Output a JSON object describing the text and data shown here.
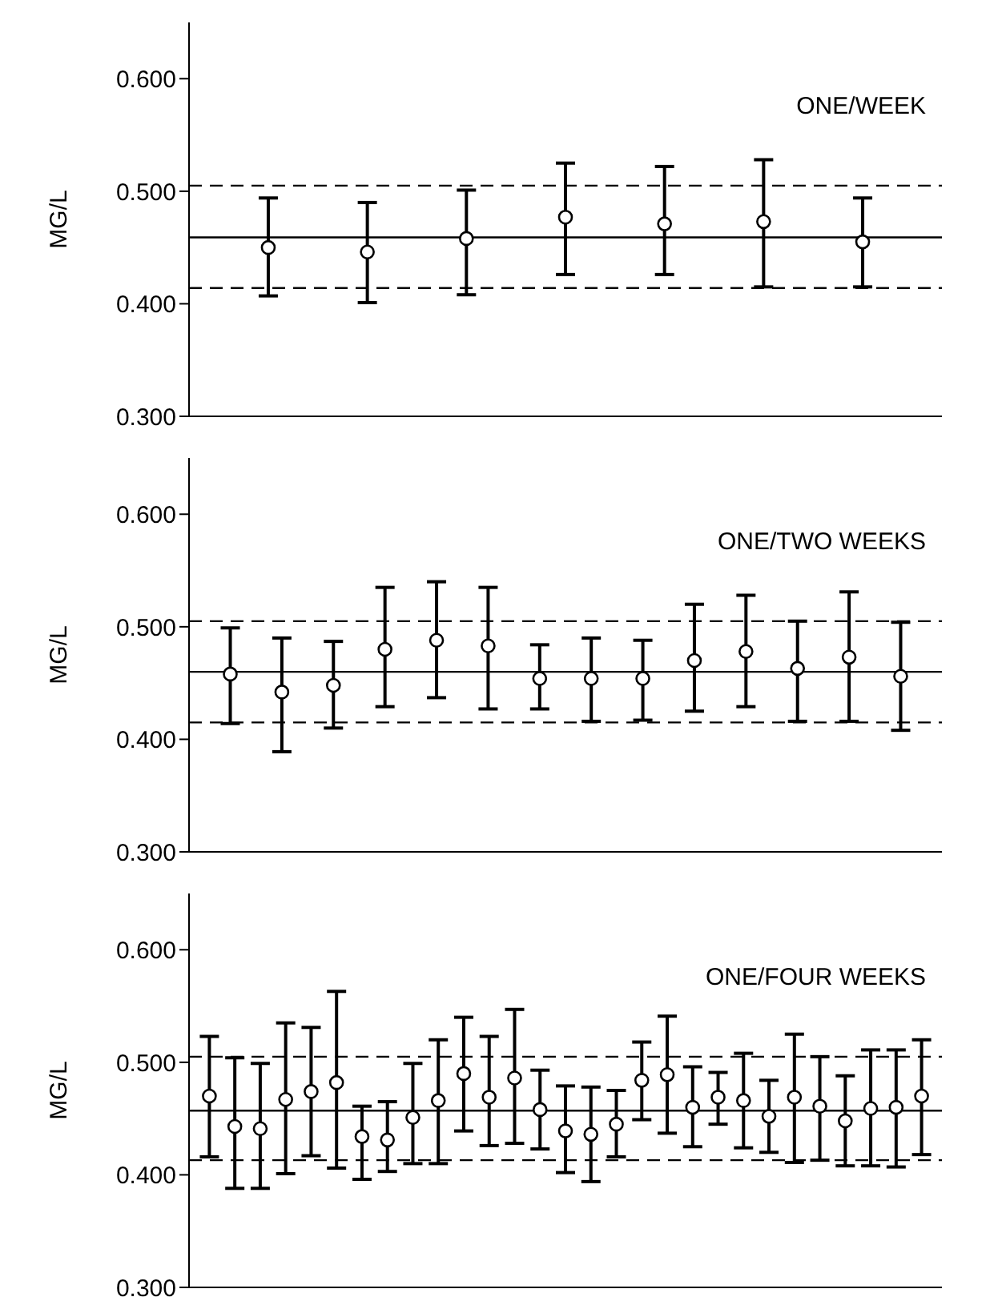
{
  "chart_data": [
    {
      "type": "scatter",
      "ylabel": "MG/L",
      "annotations": [
        "ONE/WEEK"
      ],
      "categories": [
        null,
        null,
        null,
        null,
        null,
        null,
        null
      ],
      "marker": "circle",
      "color": "#000000",
      "tick_labels": "y",
      "values": [
        0.45,
        0.446,
        0.458,
        0.477,
        0.471,
        0.473,
        0.455
      ],
      "errors": [
        [
          0.407,
          0.494
        ],
        [
          0.401,
          0.49
        ],
        [
          0.408,
          0.501
        ],
        [
          0.426,
          0.525
        ],
        [
          0.426,
          0.522
        ],
        [
          0.415,
          0.528
        ],
        [
          0.415,
          0.494
        ]
      ],
      "ylim": [
        0.3,
        0.65
      ],
      "yticks": [
        {
          "value": 0.3,
          "label": "0.300"
        },
        {
          "value": 0.4,
          "label": "0.400"
        },
        {
          "value": 0.5,
          "label": "0.500"
        },
        {
          "value": 0.6,
          "label": "0.600"
        }
      ],
      "ref_lines": [
        {
          "axis": "y",
          "value": 0.459,
          "line_style": "solid"
        },
        {
          "axis": "y",
          "value": 0.505,
          "line_style": "dashed"
        },
        {
          "axis": "y",
          "value": 0.414,
          "line_style": "dashed"
        }
      ]
    },
    {
      "type": "scatter",
      "ylabel": "MG/L",
      "annotations": [
        "ONE/TWO WEEKS"
      ],
      "categories": [
        null,
        null,
        null,
        null,
        null,
        null,
        null,
        null,
        null,
        null,
        null,
        null,
        null,
        null
      ],
      "marker": "circle",
      "color": "#000000",
      "tick_labels": "y",
      "values": [
        0.458,
        0.442,
        0.448,
        0.48,
        0.488,
        0.483,
        0.454,
        0.454,
        0.454,
        0.47,
        0.478,
        0.463,
        0.473,
        0.456
      ],
      "errors": [
        [
          0.414,
          0.499
        ],
        [
          0.389,
          0.49
        ],
        [
          0.41,
          0.487
        ],
        [
          0.429,
          0.535
        ],
        [
          0.437,
          0.54
        ],
        [
          0.427,
          0.535
        ],
        [
          0.427,
          0.484
        ],
        [
          0.416,
          0.49
        ],
        [
          0.417,
          0.488
        ],
        [
          0.425,
          0.52
        ],
        [
          0.429,
          0.528
        ],
        [
          0.416,
          0.505
        ],
        [
          0.416,
          0.531
        ],
        [
          0.408,
          0.504
        ]
      ],
      "ylim": [
        0.3,
        0.65
      ],
      "yticks": [
        {
          "value": 0.3,
          "label": "0.300"
        },
        {
          "value": 0.4,
          "label": "0.400"
        },
        {
          "value": 0.5,
          "label": "0.500"
        },
        {
          "value": 0.6,
          "label": "0.600"
        }
      ],
      "ref_lines": [
        {
          "axis": "y",
          "value": 0.46,
          "line_style": "solid"
        },
        {
          "axis": "y",
          "value": 0.505,
          "line_style": "dashed"
        },
        {
          "axis": "y",
          "value": 0.415,
          "line_style": "dashed"
        }
      ]
    },
    {
      "type": "scatter",
      "ylabel": "MG/L",
      "annotations": [
        "ONE/FOUR WEEKS"
      ],
      "categories": [
        null,
        null,
        null,
        null,
        null,
        null,
        null,
        null,
        null,
        null,
        null,
        null,
        null,
        null,
        null,
        null,
        null,
        null,
        null,
        null,
        null,
        null,
        null,
        null,
        null,
        null,
        null,
        null,
        null
      ],
      "marker": "circle",
      "color": "#000000",
      "tick_labels": "y",
      "values": [
        0.47,
        0.443,
        0.441,
        0.467,
        0.474,
        0.482,
        0.434,
        0.431,
        0.451,
        0.466,
        0.49,
        0.469,
        0.486,
        0.458,
        0.439,
        0.436,
        0.445,
        0.484,
        0.489,
        0.46,
        0.469,
        0.466,
        0.452,
        0.469,
        0.461,
        0.448,
        0.459,
        0.46,
        0.47
      ],
      "errors": [
        [
          0.416,
          0.523
        ],
        [
          0.388,
          0.504
        ],
        [
          0.388,
          0.499
        ],
        [
          0.401,
          0.535
        ],
        [
          0.417,
          0.531
        ],
        [
          0.406,
          0.563
        ],
        [
          0.396,
          0.461
        ],
        [
          0.403,
          0.465
        ],
        [
          0.41,
          0.499
        ],
        [
          0.41,
          0.52
        ],
        [
          0.439,
          0.54
        ],
        [
          0.426,
          0.523
        ],
        [
          0.428,
          0.547
        ],
        [
          0.423,
          0.493
        ],
        [
          0.402,
          0.479
        ],
        [
          0.394,
          0.478
        ],
        [
          0.416,
          0.475
        ],
        [
          0.449,
          0.518
        ],
        [
          0.437,
          0.541
        ],
        [
          0.425,
          0.496
        ],
        [
          0.445,
          0.491
        ],
        [
          0.424,
          0.508
        ],
        [
          0.42,
          0.484
        ],
        [
          0.411,
          0.525
        ],
        [
          0.413,
          0.505
        ],
        [
          0.408,
          0.488
        ],
        [
          0.408,
          0.511
        ],
        [
          0.407,
          0.511
        ],
        [
          0.418,
          0.52
        ]
      ],
      "ylim": [
        0.3,
        0.65
      ],
      "yticks": [
        {
          "value": 0.3,
          "label": "0.300"
        },
        {
          "value": 0.4,
          "label": "0.400"
        },
        {
          "value": 0.5,
          "label": "0.500"
        },
        {
          "value": 0.6,
          "label": "0.600"
        }
      ],
      "ref_lines": [
        {
          "axis": "y",
          "value": 0.457,
          "line_style": "solid"
        },
        {
          "axis": "y",
          "value": 0.505,
          "line_style": "dashed"
        },
        {
          "axis": "y",
          "value": 0.413,
          "line_style": "dashed"
        }
      ]
    }
  ]
}
